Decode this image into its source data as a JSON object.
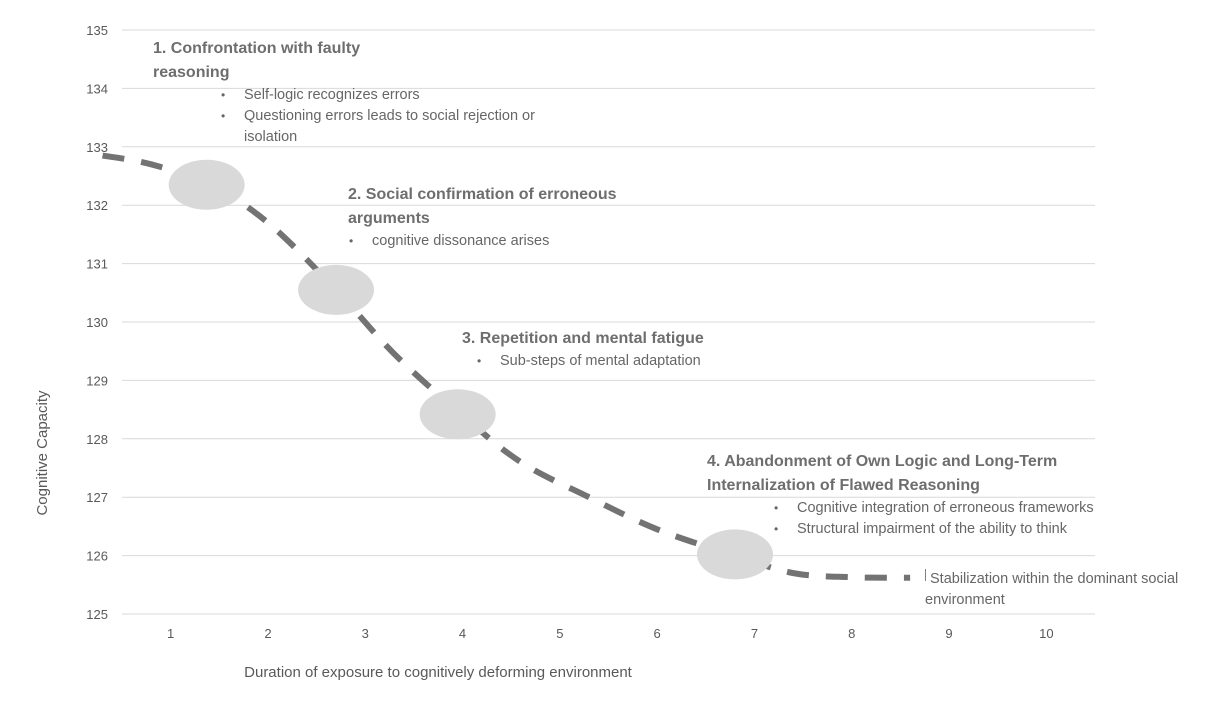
{
  "chart_data": {
    "type": "line",
    "title": "",
    "xlabel": "Duration of exposure to cognitively deforming environment",
    "ylabel": "Cognitive Capacity",
    "x_ticks": [
      1,
      2,
      3,
      4,
      5,
      6,
      7,
      8,
      9,
      10
    ],
    "y_ticks": [
      125,
      126,
      127,
      128,
      129,
      130,
      131,
      132,
      133,
      134,
      135
    ],
    "xlim": [
      0.5,
      10.5
    ],
    "ylim": [
      125,
      135
    ],
    "grid": "horizontal",
    "line_style": "dashed",
    "line_color": "#737373",
    "marker_color": "#d9d9d9",
    "series": [
      {
        "x": [
          0.3,
          0.8,
          1.4,
          2.0,
          2.7,
          3.3,
          4.0,
          4.6,
          5.3,
          6.0,
          6.8,
          7.4,
          8.0,
          8.6
        ],
        "values": [
          132.85,
          132.7,
          132.35,
          131.7,
          130.55,
          129.45,
          128.4,
          127.6,
          127.0,
          126.45,
          126.0,
          125.7,
          125.63,
          125.62
        ]
      }
    ],
    "markers": [
      {
        "x": 1.37,
        "y": 132.35
      },
      {
        "x": 2.7,
        "y": 130.55
      },
      {
        "x": 3.95,
        "y": 128.42
      },
      {
        "x": 6.8,
        "y": 126.02
      }
    ],
    "annotations": [
      {
        "title": "1. Confrontation with faulty reasoning",
        "bullets": [
          "Self-logic recognizes errors",
          "Questioning errors leads to social rejection or isolation"
        ]
      },
      {
        "title": "2. Social confirmation of erroneous arguments",
        "bullets": [
          "cognitive dissonance arises"
        ]
      },
      {
        "title": "3. Repetition and mental fatigue",
        "bullets": [
          "Sub-steps of mental adaptation"
        ]
      },
      {
        "title": "4. Abandonment of Own Logic and Long-Term Internalization of Flawed Reasoning",
        "bullets": [
          "Cognitive integration of erroneous frameworks",
          "Structural impairment of the ability to think"
        ]
      }
    ],
    "end_note": "Stabilization within the dominant social environment"
  }
}
